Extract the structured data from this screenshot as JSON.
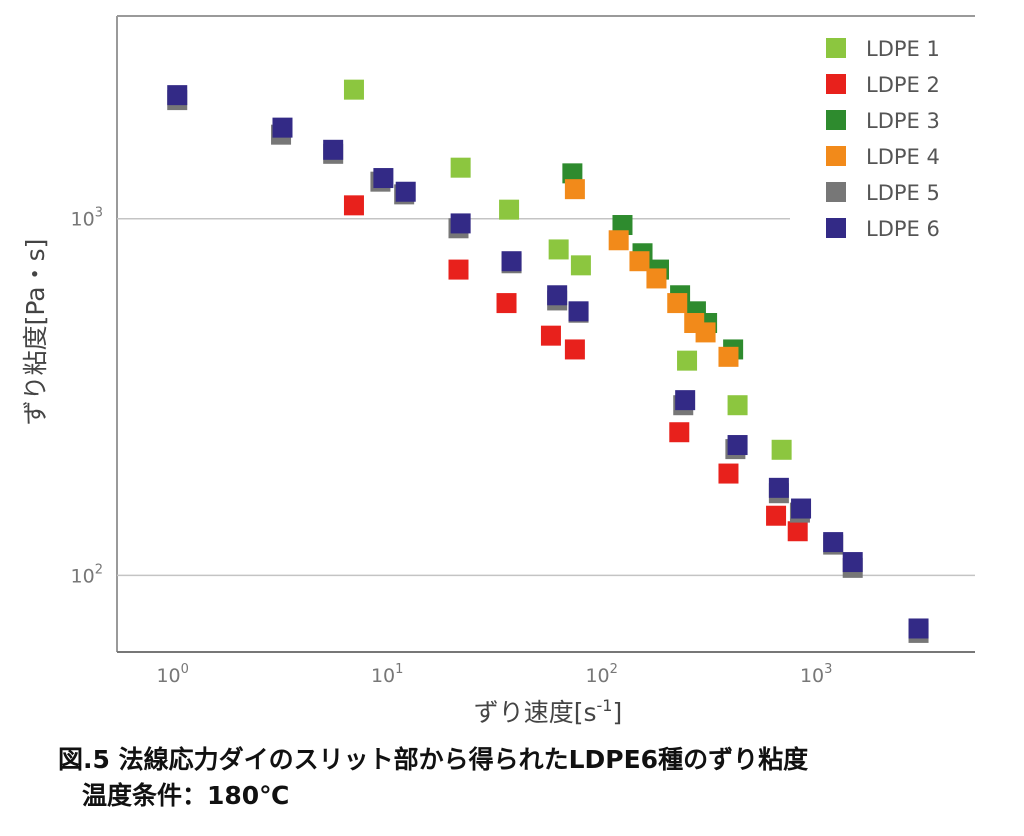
{
  "caption": {
    "line1": "図.5 法線応力ダイのスリット部から得られたLDPE6種のずり粘度",
    "line2": "温度条件：180℃"
  },
  "chart_data": {
    "type": "scatter",
    "xscale": "log",
    "yscale": "log",
    "xlabel_main": "ずり速度[s",
    "xlabel_sup": "-1",
    "xlabel_end": "]",
    "ylabel": "ずり粘度[Pa・s]",
    "xlim": [
      0.55,
      5500
    ],
    "ylim": [
      61,
      3700
    ],
    "xticks": [
      {
        "value": 1,
        "base": "10",
        "exp": "0"
      },
      {
        "value": 10,
        "base": "10",
        "exp": "1"
      },
      {
        "value": 100,
        "base": "10",
        "exp": "2"
      },
      {
        "value": 1000,
        "base": "10",
        "exp": "3"
      }
    ],
    "yticks": [
      {
        "value": 100,
        "base": "10",
        "exp": "2"
      },
      {
        "value": 1000,
        "base": "10",
        "exp": "3"
      }
    ],
    "gridlines_y": [
      100,
      1000
    ],
    "legend_position": "top-right",
    "series": [
      {
        "name": "LDPE 1",
        "color": "#8cc63f",
        "points": [
          [
            7,
            2300
          ],
          [
            22,
            1390
          ],
          [
            37,
            1060
          ],
          [
            63,
            820
          ],
          [
            80,
            740
          ],
          [
            250,
            400
          ],
          [
            430,
            300
          ],
          [
            690,
            225
          ]
        ]
      },
      {
        "name": "LDPE 2",
        "color": "#e8211c",
        "points": [
          [
            7,
            1090
          ],
          [
            21.5,
            720
          ],
          [
            36,
            580
          ],
          [
            58,
            470
          ],
          [
            75,
            430
          ],
          [
            230,
            252
          ],
          [
            390,
            193
          ],
          [
            650,
            147
          ],
          [
            820,
            133
          ]
        ]
      },
      {
        "name": "LDPE 3",
        "color": "#2e8b2e",
        "points": [
          [
            73,
            1340
          ],
          [
            125,
            960
          ],
          [
            155,
            800
          ],
          [
            185,
            720
          ],
          [
            232,
            610
          ],
          [
            275,
            550
          ],
          [
            310,
            510
          ],
          [
            410,
            430
          ]
        ]
      },
      {
        "name": "LDPE 4",
        "color": "#f28a1a",
        "points": [
          [
            75,
            1210
          ],
          [
            120,
            870
          ],
          [
            150,
            760
          ],
          [
            180,
            680
          ],
          [
            225,
            580
          ],
          [
            270,
            510
          ],
          [
            305,
            480
          ],
          [
            390,
            410
          ]
        ]
      },
      {
        "name": "LDPE 5",
        "color": "#777777",
        "points": [
          [
            1.05,
            2150
          ],
          [
            3.2,
            1720
          ],
          [
            5.6,
            1520
          ],
          [
            9.3,
            1270
          ],
          [
            12,
            1170
          ],
          [
            21.5,
            940
          ],
          [
            38,
            750
          ],
          [
            62,
            590
          ],
          [
            78,
            545
          ],
          [
            240,
            300
          ],
          [
            420,
            226
          ],
          [
            670,
            170
          ],
          [
            840,
            150
          ],
          [
            1200,
            122
          ],
          [
            1480,
            105
          ],
          [
            3000,
            69
          ]
        ]
      },
      {
        "name": "LDPE 6",
        "color": "#332a86",
        "points": [
          [
            1.05,
            2220
          ],
          [
            3.25,
            1800
          ],
          [
            5.6,
            1560
          ],
          [
            9.6,
            1300
          ],
          [
            12.2,
            1190
          ],
          [
            22,
            970
          ],
          [
            38,
            760
          ],
          [
            62,
            610
          ],
          [
            78,
            550
          ],
          [
            245,
            310
          ],
          [
            430,
            232
          ],
          [
            670,
            176
          ],
          [
            850,
            154
          ],
          [
            1200,
            124
          ],
          [
            1480,
            109
          ],
          [
            3000,
            71
          ]
        ]
      }
    ]
  }
}
